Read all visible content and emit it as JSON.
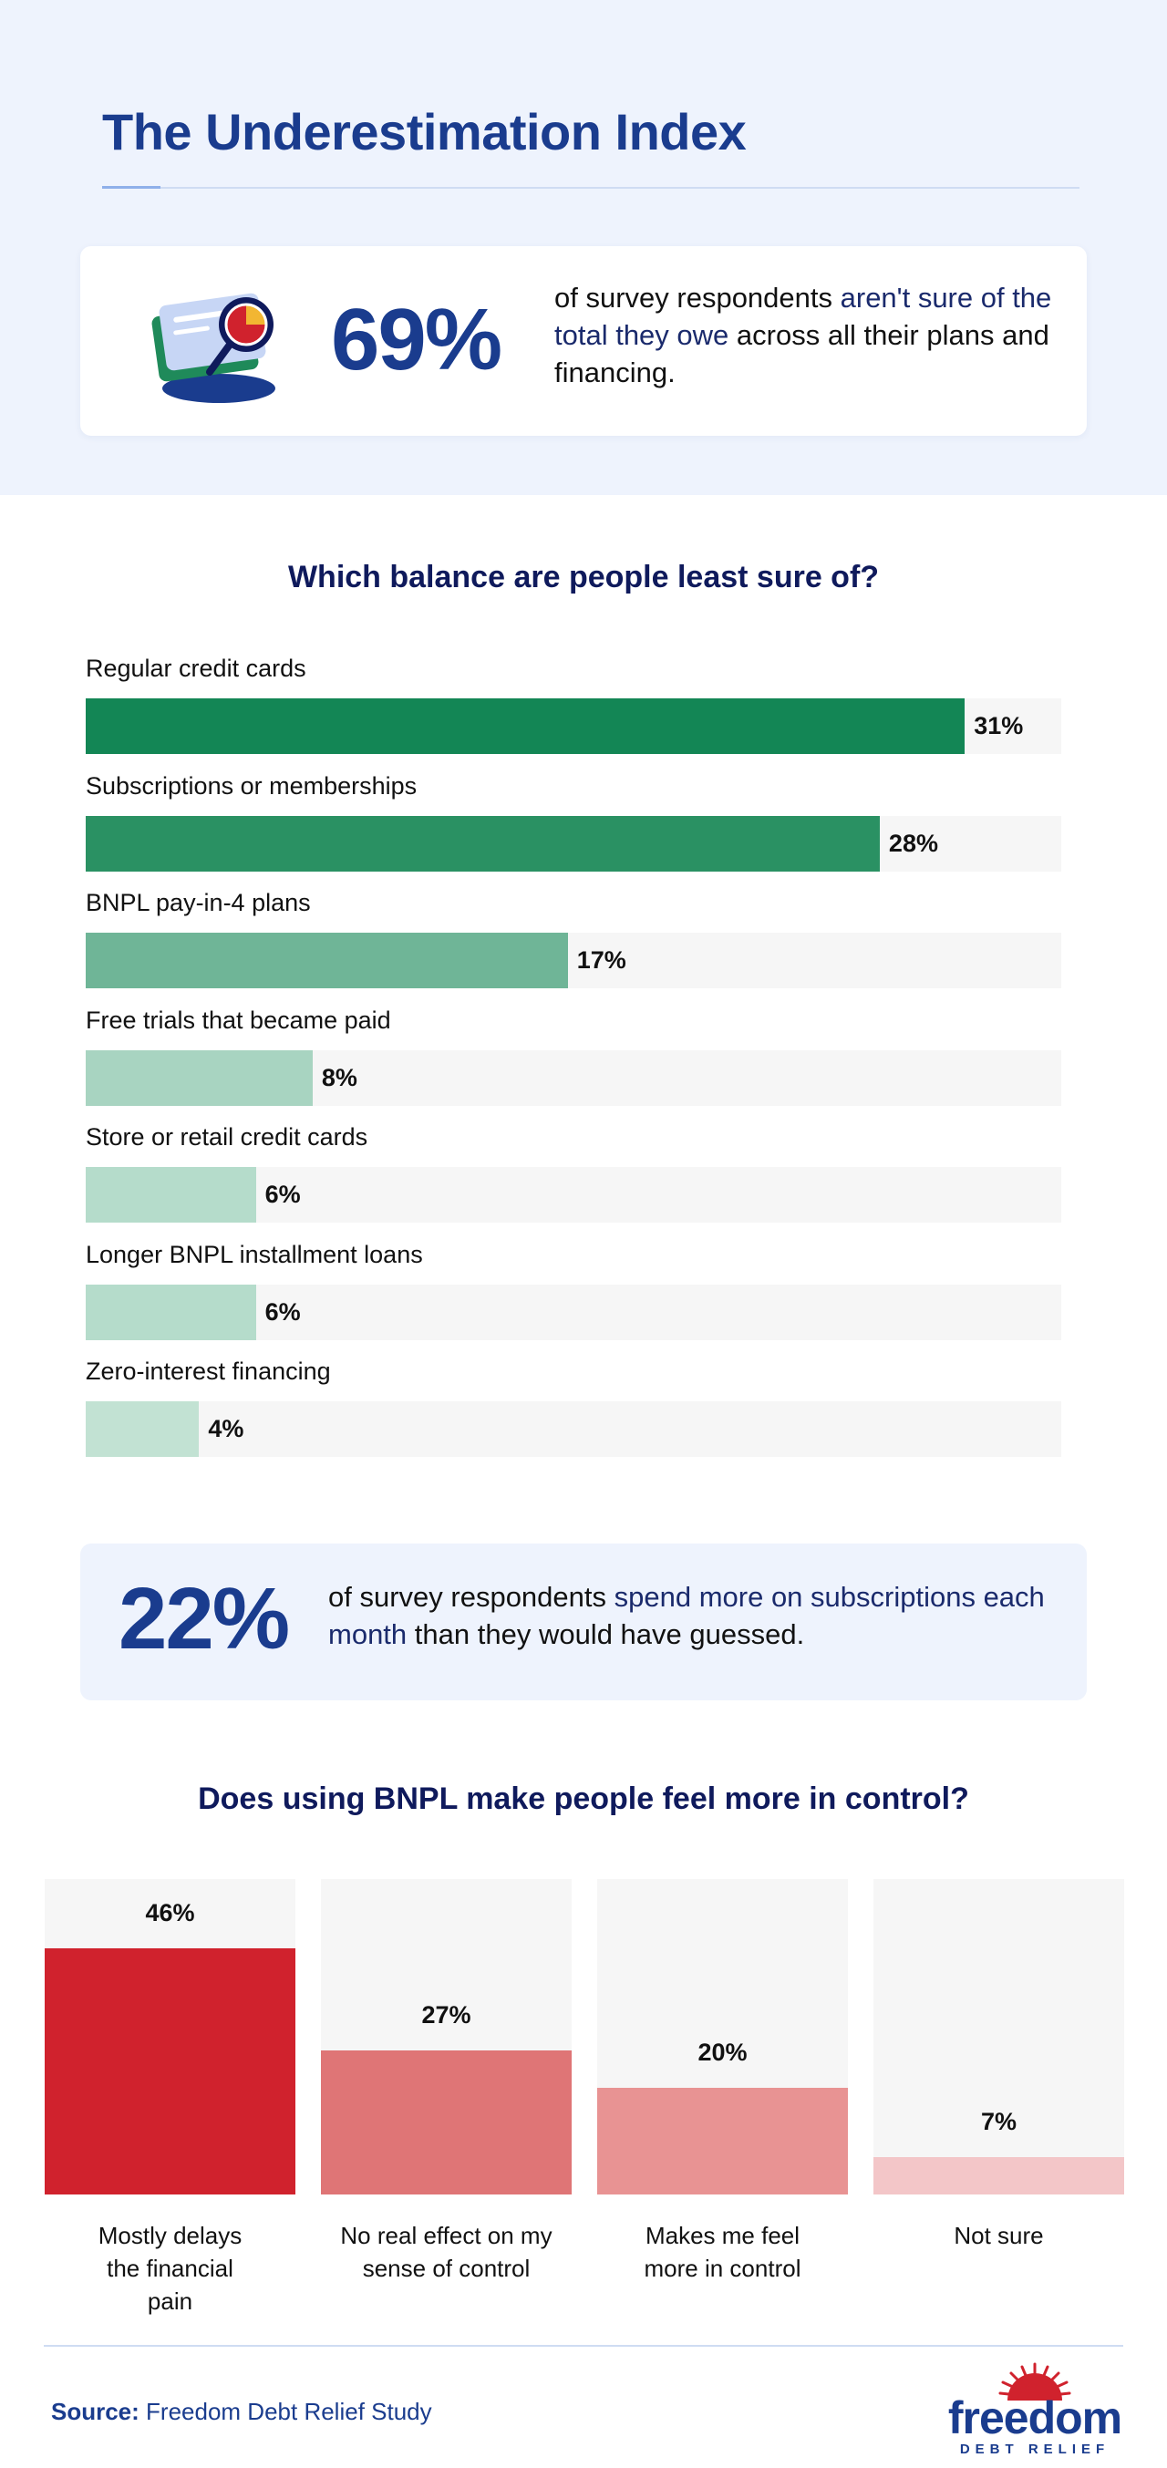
{
  "header": {
    "title": "The Underestimation Index"
  },
  "stat1": {
    "value": "69%",
    "text_before": "of survey respondents ",
    "text_highlight": "aren't sure of the total they owe",
    "text_after": " across all their plans and financing."
  },
  "stat2": {
    "value": "22%",
    "text_before": "of survey respondents ",
    "text_highlight": "spend more on subscriptions each month",
    "text_after": " than they would have guessed."
  },
  "footer": {
    "source_label": "Source:",
    "source_text": " Freedom Debt Relief Study",
    "logo_word": "freedom",
    "logo_sub": "DEBT RELIEF"
  },
  "colors": {
    "brand_blue": "#1a3c8e",
    "title_navy": "#0f1a5c",
    "green_scale": [
      "#138655",
      "#2a9163",
      "#6fb597",
      "#a8d4c1",
      "#b5dccb",
      "#b5dccb",
      "#c2e2d3"
    ],
    "red_scale": [
      "#d0222d",
      "#df7576",
      "#e89393",
      "#f3c6c8"
    ]
  },
  "chart_data": [
    {
      "type": "bar",
      "orientation": "horizontal",
      "title": "Which balance are people least sure of?",
      "categories": [
        "Regular credit cards",
        "Subscriptions or memberships",
        "BNPL pay-in-4 plans",
        "Free trials that became paid",
        "Store or retail credit cards",
        "Longer BNPL installment loans",
        "Zero-interest financing"
      ],
      "values": [
        31,
        28,
        17,
        8,
        6,
        6,
        4
      ],
      "value_labels": [
        "31%",
        "28%",
        "17%",
        "8%",
        "6%",
        "6%",
        "4%"
      ],
      "xlim": [
        0,
        34.4
      ],
      "grid": false
    },
    {
      "type": "bar",
      "orientation": "vertical",
      "title": "Does using BNPL make people feel more in control?",
      "categories": [
        "Mostly delays the financial pain",
        "No real effect on my sense of control",
        "Makes me feel more in control",
        "Not sure"
      ],
      "values": [
        46,
        27,
        20,
        7
      ],
      "value_labels": [
        "46%",
        "27%",
        "20%",
        "7%"
      ],
      "ylim": [
        0,
        59
      ],
      "grid": false
    }
  ]
}
